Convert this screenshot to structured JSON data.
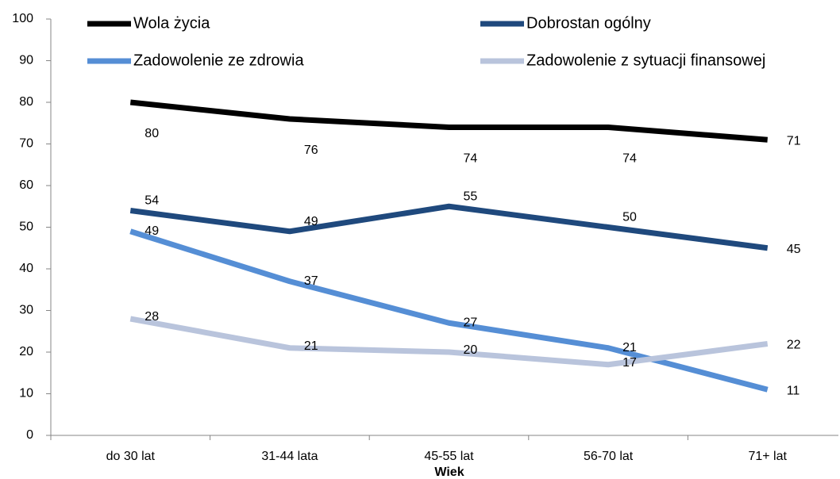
{
  "chart_data": {
    "type": "line",
    "xlabel": "Wiek",
    "categories": [
      "do 30 lat",
      "31-44 lata",
      "45-55 lat",
      "56-70 lat",
      "71+ lat"
    ],
    "series": [
      {
        "name": "Wola życia",
        "color": "#000000",
        "values": [
          80,
          76,
          74,
          74,
          71
        ]
      },
      {
        "name": "Dobrostan ogólny",
        "color": "#1f497d",
        "values": [
          54,
          49,
          55,
          50,
          45
        ]
      },
      {
        "name": "Zadowolenie ze zdrowia",
        "color": "#558ed5",
        "values": [
          49,
          37,
          27,
          21,
          11
        ]
      },
      {
        "name": "Zadowolenie z sytuacji finansowej",
        "color": "#b9c4dc",
        "values": [
          28,
          21,
          20,
          17,
          22
        ]
      }
    ],
    "ylim": [
      0,
      100
    ],
    "yticks": [
      0,
      10,
      20,
      30,
      40,
      50,
      60,
      70,
      80,
      90,
      100
    ],
    "grid": false,
    "legend": "top"
  }
}
